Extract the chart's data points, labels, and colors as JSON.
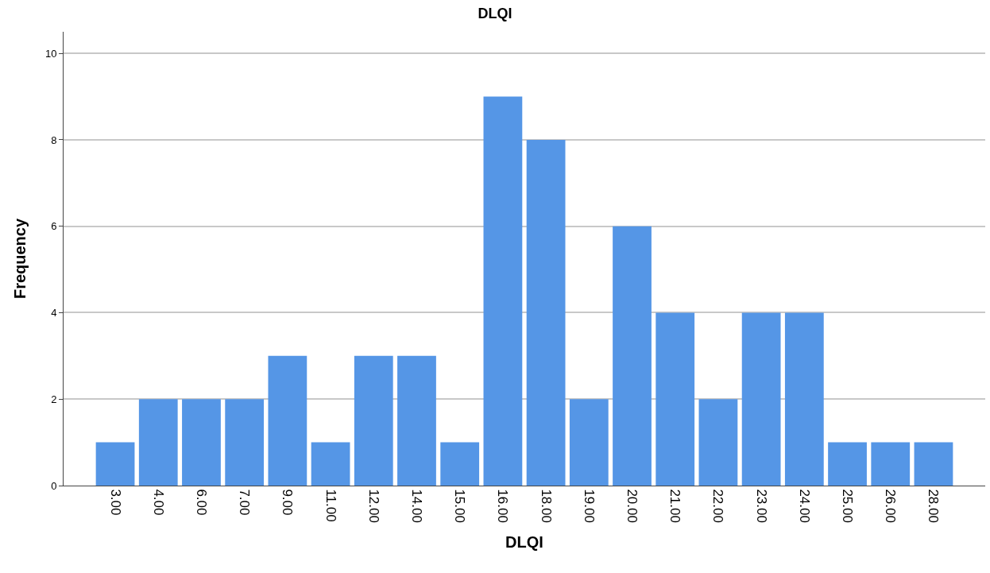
{
  "chart_data": {
    "type": "bar",
    "title": "DLQI",
    "xlabel": "DLQI",
    "ylabel": "Frequency",
    "categories": [
      "3.00",
      "4.00",
      "6.00",
      "7.00",
      "9.00",
      "11.00",
      "12.00",
      "14.00",
      "15.00",
      "16.00",
      "18.00",
      "19.00",
      "20.00",
      "21.00",
      "22.00",
      "23.00",
      "24.00",
      "25.00",
      "26.00",
      "28.00"
    ],
    "values": [
      1,
      2,
      2,
      2,
      3,
      1,
      3,
      3,
      1,
      9,
      8,
      2,
      6,
      4,
      2,
      4,
      4,
      1,
      1,
      1
    ],
    "color": "#5596e6",
    "ylim": [
      0,
      10.5
    ],
    "yticks": [
      0,
      2,
      4,
      6,
      8,
      10
    ],
    "grid": "y",
    "legend": false
  }
}
